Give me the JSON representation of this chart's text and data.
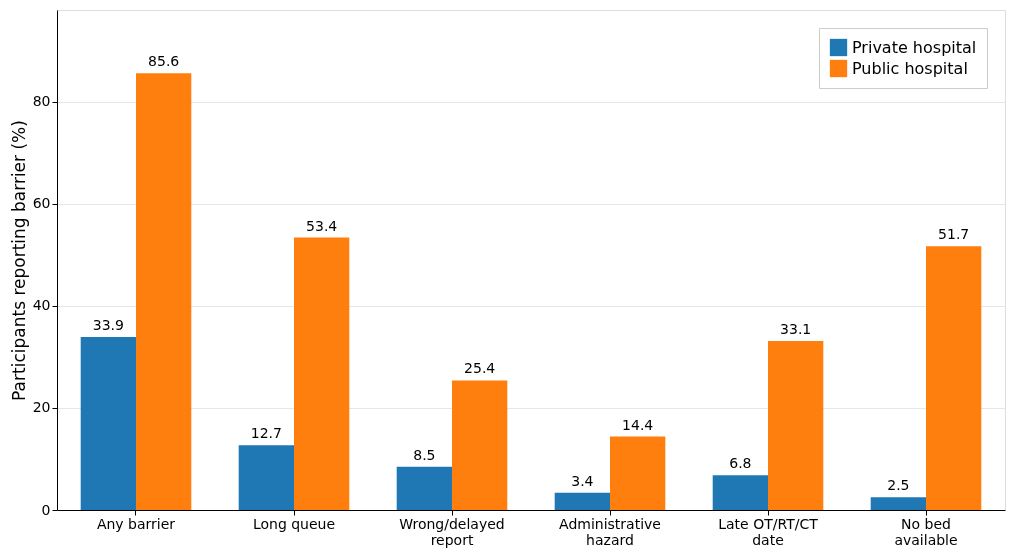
{
  "chart_data": {
    "type": "bar",
    "ylabel": "Participants reporting barrier (%)",
    "categories": [
      "Any barrier",
      "Long queue",
      "Wrong/delayed\nreport",
      "Administrative\nhazard",
      "Late OT/RT/CT\ndate",
      "No bed\navailable"
    ],
    "series": [
      {
        "name": "Private hospital",
        "color": "#1f77b4",
        "values": [
          33.9,
          12.7,
          8.5,
          3.4,
          6.8,
          2.5
        ]
      },
      {
        "name": "Public hospital",
        "color": "#ff7f0e",
        "values": [
          85.6,
          53.4,
          25.4,
          14.4,
          33.1,
          51.7
        ]
      }
    ],
    "ylim": [
      0,
      98
    ],
    "yticks": [
      0,
      20,
      40,
      60,
      80
    ],
    "grid": "y",
    "legend": "top right",
    "data_labels": true
  }
}
